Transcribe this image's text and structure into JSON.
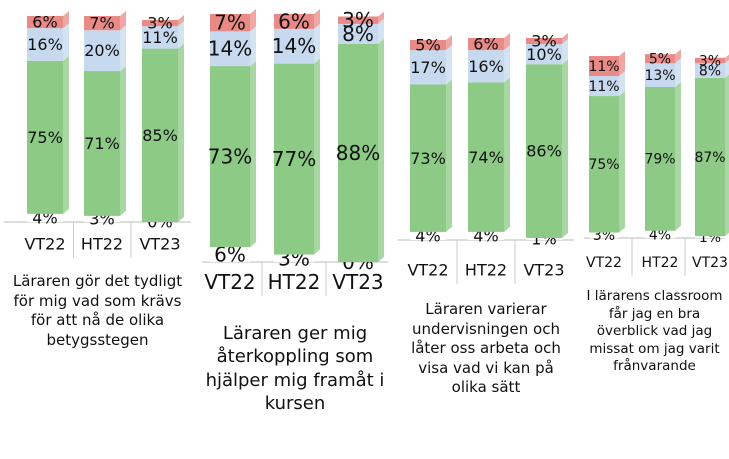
{
  "chart_data": [
    {
      "type": "bar",
      "stacked": true,
      "title": "Läraren gör det tydligt för mig vad som krävs för att nå de olika betygsstegen",
      "categories": [
        "VT22",
        "HT22",
        "VT23"
      ],
      "ylim": [
        0,
        100
      ],
      "series": [
        {
          "color": "#ffffff",
          "values": [
            4,
            3,
            0
          ],
          "value_labels": [
            "4%",
            "3%",
            "0%"
          ]
        },
        {
          "color": "#8cca86",
          "values": [
            75,
            71,
            85
          ],
          "value_labels": [
            "75%",
            "71%",
            "85%"
          ]
        },
        {
          "color": "#c6d9ee",
          "values": [
            16,
            20,
            11
          ],
          "value_labels": [
            "16%",
            "20%",
            "11%"
          ]
        },
        {
          "color": "#e98a86",
          "values": [
            6,
            7,
            3
          ],
          "value_labels": [
            "6%",
            "7%",
            "3%"
          ]
        }
      ]
    },
    {
      "type": "bar",
      "stacked": true,
      "title": "Läraren ger mig återkoppling som hjälper mig framåt i kursen",
      "categories": [
        "VT22",
        "HT22",
        "VT23"
      ],
      "ylim": [
        0,
        100
      ],
      "series": [
        {
          "color": "#ffffff",
          "values": [
            6,
            3,
            0
          ],
          "value_labels": [
            "6%",
            "3%",
            "0%"
          ]
        },
        {
          "color": "#8cca86",
          "values": [
            73,
            77,
            88
          ],
          "value_labels": [
            "73%",
            "77%",
            "88%"
          ]
        },
        {
          "color": "#c6d9ee",
          "values": [
            14,
            14,
            8
          ],
          "value_labels": [
            "14%",
            "14%",
            "8%"
          ]
        },
        {
          "color": "#e98a86",
          "values": [
            7,
            6,
            3
          ],
          "value_labels": [
            "7%",
            "6%",
            "3%"
          ]
        }
      ]
    },
    {
      "type": "bar",
      "stacked": true,
      "title": "Läraren varierar undervisningen och låter oss arbeta och visa vad vi kan på olika sätt",
      "categories": [
        "VT22",
        "HT22",
        "VT23"
      ],
      "ylim": [
        0,
        100
      ],
      "series": [
        {
          "color": "#ffffff",
          "values": [
            4,
            4,
            1
          ],
          "value_labels": [
            "4%",
            "4%",
            "1%"
          ]
        },
        {
          "color": "#8cca86",
          "values": [
            73,
            74,
            86
          ],
          "value_labels": [
            "73%",
            "74%",
            "86%"
          ]
        },
        {
          "color": "#c6d9ee",
          "values": [
            17,
            16,
            10
          ],
          "value_labels": [
            "17%",
            "16%",
            "10%"
          ]
        },
        {
          "color": "#e98a86",
          "values": [
            5,
            6,
            3
          ],
          "value_labels": [
            "5%",
            "6%",
            "3%"
          ]
        }
      ]
    },
    {
      "type": "bar",
      "stacked": true,
      "title": "I lärarens classroom får jag en bra överblick vad jag missat om jag varit frånvarande",
      "categories": [
        "VT22",
        "HT22",
        "VT23"
      ],
      "ylim": [
        0,
        100
      ],
      "series": [
        {
          "color": "#ffffff",
          "values": [
            3,
            4,
            1
          ],
          "value_labels": [
            "3%",
            "4%",
            "1%"
          ]
        },
        {
          "color": "#8cca86",
          "values": [
            75,
            79,
            87
          ],
          "value_labels": [
            "75%",
            "79%",
            "87%"
          ]
        },
        {
          "color": "#c6d9ee",
          "values": [
            11,
            13,
            8
          ],
          "value_labels": [
            "11%",
            "13%",
            "8%"
          ]
        },
        {
          "color": "#e98a86",
          "values": [
            11,
            5,
            3
          ],
          "value_labels": [
            "11%",
            "5%",
            "3%"
          ]
        }
      ]
    }
  ]
}
